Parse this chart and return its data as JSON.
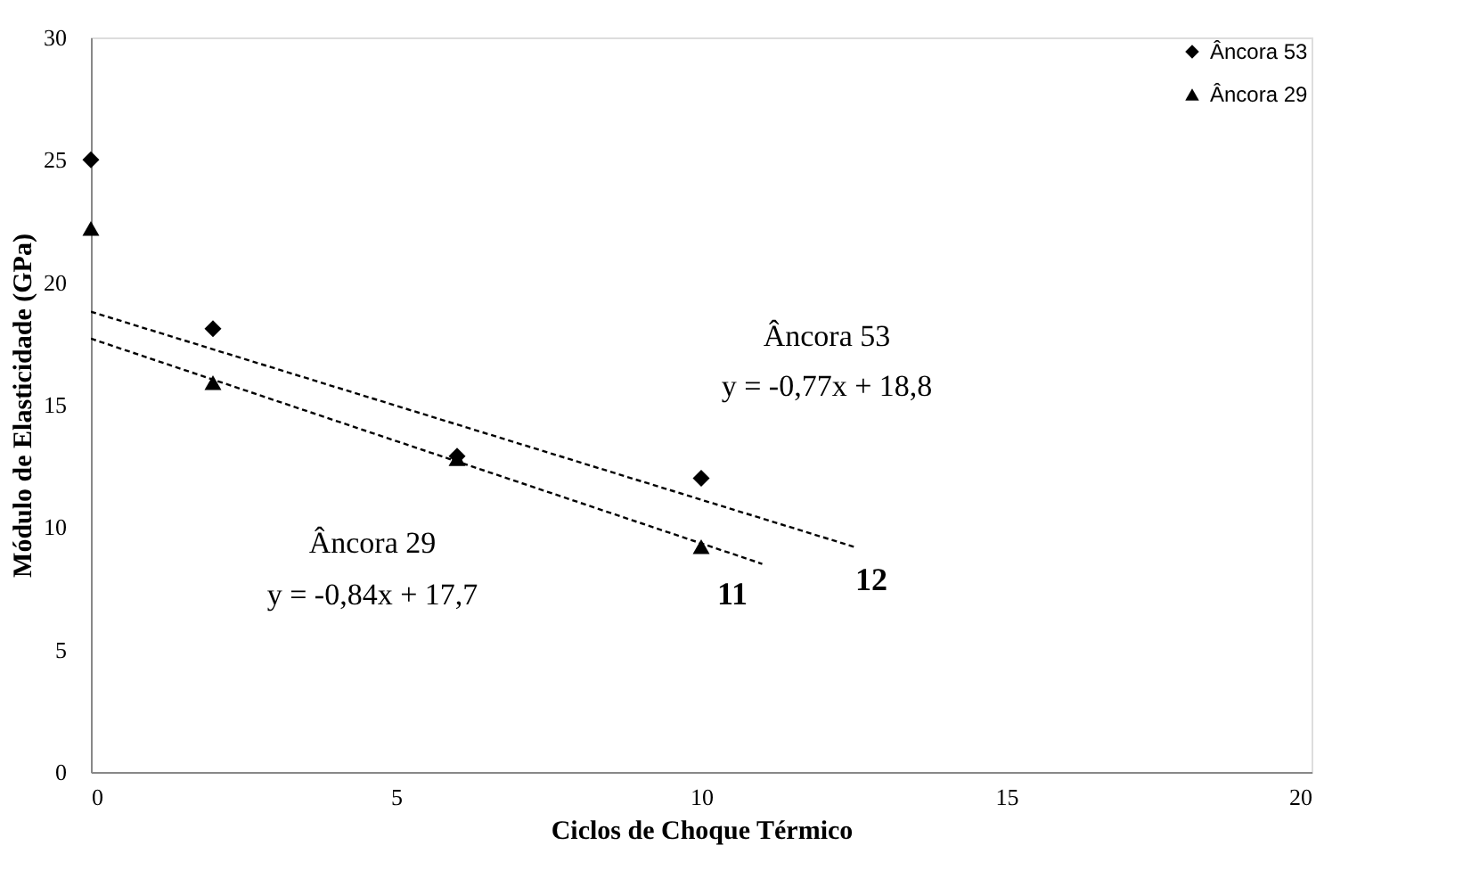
{
  "chart_data": {
    "type": "scatter",
    "xlabel": "Ciclos de Choque Térmico",
    "ylabel": "Módulo de Elasticidade (GPa)",
    "xlim": [
      0,
      20
    ],
    "xticks": [
      0,
      5,
      10,
      15,
      20
    ],
    "ylim": [
      0,
      30
    ],
    "yticks": [
      0,
      5,
      10,
      15,
      20,
      25,
      30
    ],
    "grid": false,
    "legend": "top right",
    "series": [
      {
        "name": "Âncora 53",
        "color": "#000000",
        "marker": "diamond",
        "x": [
          0,
          2,
          6,
          10
        ],
        "values": [
          25.0,
          18.1,
          12.9,
          12.0
        ]
      },
      {
        "name": "Âncora 29",
        "color": "#000000",
        "marker": "triangle",
        "x": [
          0,
          2,
          6,
          10
        ],
        "values": [
          22.2,
          15.9,
          12.8,
          9.2
        ]
      },
      {
        "type": "line",
        "color": "#000000",
        "line_style": "dashed",
        "x": [
          0,
          12.5
        ],
        "values": [
          18.8,
          9.2
        ]
      },
      {
        "type": "line",
        "color": "#000000",
        "line_style": "dashed",
        "x": [
          0,
          11
        ],
        "values": [
          17.7,
          8.5
        ]
      }
    ],
    "annotations": [
      "Âncora 53",
      "y = -0,77x + 18,8",
      "Âncora 29",
      "y = -0,84x + 17,7",
      "11",
      "12"
    ]
  }
}
